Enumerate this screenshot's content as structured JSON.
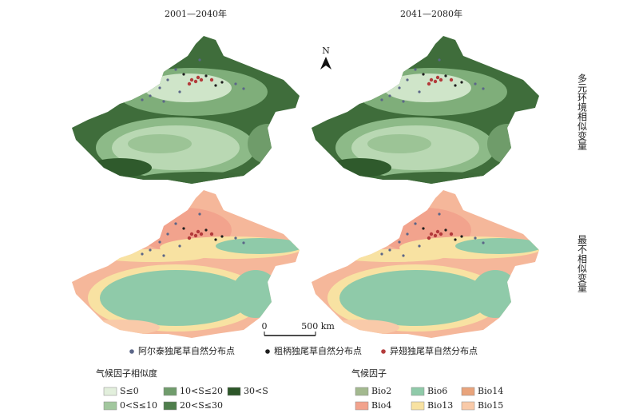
{
  "columns": [
    "2001—2040年",
    "2041—2080年"
  ],
  "rows": [
    "多元环境相似变量",
    "最不相似变量"
  ],
  "north": "N",
  "scale": {
    "start": "0",
    "end": "500 km"
  },
  "species_legend": [
    {
      "label": "阿尔泰独尾草自然分布点",
      "color": "#5b6688"
    },
    {
      "label": "粗柄独尾草自然分布点",
      "color": "#1e1e1e"
    },
    {
      "label": "异翅独尾草自然分布点",
      "color": "#b33b3b"
    }
  ],
  "similarity_legend": {
    "title": "气候因子相似度",
    "items": [
      {
        "label": "S≤0",
        "color": "#e2efdc"
      },
      {
        "label": "0<S≤10",
        "color": "#a2c79e"
      },
      {
        "label": "10<S≤20",
        "color": "#709c6c"
      },
      {
        "label": "20<S≤30",
        "color": "#4f7e4c"
      },
      {
        "label": "30<S",
        "color": "#2c5628"
      }
    ]
  },
  "factor_legend": {
    "title": "气候因子",
    "items": [
      {
        "label": "Bio2",
        "color": "#a3b98f"
      },
      {
        "label": "Bio4",
        "color": "#f2a38d"
      },
      {
        "label": "Bio6",
        "color": "#8fcaa9"
      },
      {
        "label": "Bio13",
        "color": "#f8e2a2"
      },
      {
        "label": "Bio14",
        "color": "#e9a47c"
      },
      {
        "label": "Bio15",
        "color": "#f9caa9"
      }
    ]
  }
}
